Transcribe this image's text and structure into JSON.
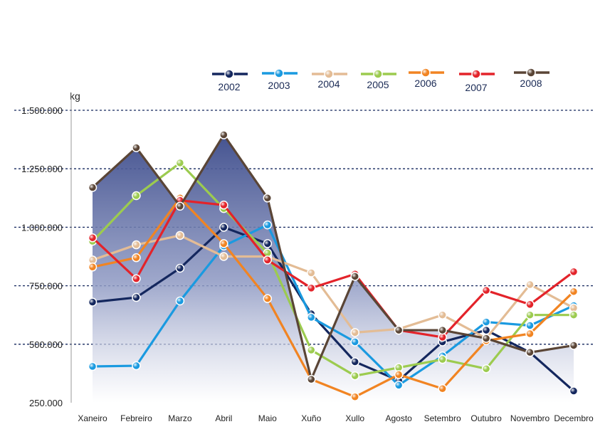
{
  "chart_data": {
    "type": "line",
    "title": "",
    "ylabel": "kg",
    "xlabel": "",
    "ylim": [
      250000,
      1500000
    ],
    "yticks": [
      250000,
      500000,
      750000,
      1000000,
      1250000,
      1500000
    ],
    "ytick_labels": [
      "250.000",
      "500.000",
      "750.000",
      "1.000.000",
      "1.250.000",
      "1.500.000"
    ],
    "categories": [
      "Xaneiro",
      "Febreiro",
      "Marzo",
      "Abril",
      "Maio",
      "Xuño",
      "Xullo",
      "Agosto",
      "Setembro",
      "Outubro",
      "Novembro",
      "Decembro"
    ],
    "legend_position": "top-right",
    "grid": "horizontal dashed",
    "filled_series": "2008",
    "series": [
      {
        "name": "2002",
        "color": "#14275e",
        "values": [
          680000,
          700000,
          825000,
          1000000,
          930000,
          630000,
          425000,
          345000,
          510000,
          560000,
          465000,
          300000
        ]
      },
      {
        "name": "2003",
        "color": "#1a9ae0",
        "values": [
          405000,
          408000,
          685000,
          920000,
          1010000,
          615000,
          510000,
          325000,
          450000,
          595000,
          580000,
          665000
        ]
      },
      {
        "name": "2004",
        "color": "#e3bc95",
        "values": [
          860000,
          925000,
          965000,
          875000,
          875000,
          805000,
          550000,
          565000,
          625000,
          525000,
          755000,
          655000
        ]
      },
      {
        "name": "2005",
        "color": "#9ccb4f",
        "values": [
          940000,
          1135000,
          1275000,
          1080000,
          890000,
          475000,
          365000,
          400000,
          435000,
          395000,
          625000,
          625000
        ]
      },
      {
        "name": "2006",
        "color": "#f18422",
        "values": [
          830000,
          870000,
          1125000,
          930000,
          695000,
          350000,
          275000,
          370000,
          310000,
          515000,
          545000,
          725000
        ]
      },
      {
        "name": "2007",
        "color": "#e3232a",
        "values": [
          955000,
          780000,
          1115000,
          1095000,
          860000,
          740000,
          800000,
          560000,
          530000,
          730000,
          670000,
          810000
        ]
      },
      {
        "name": "2008",
        "color": "#5a4536",
        "values": [
          1170000,
          1340000,
          1090000,
          1395000,
          1125000,
          350000,
          790000,
          560000,
          560000,
          525000,
          465000,
          495000
        ]
      }
    ]
  }
}
